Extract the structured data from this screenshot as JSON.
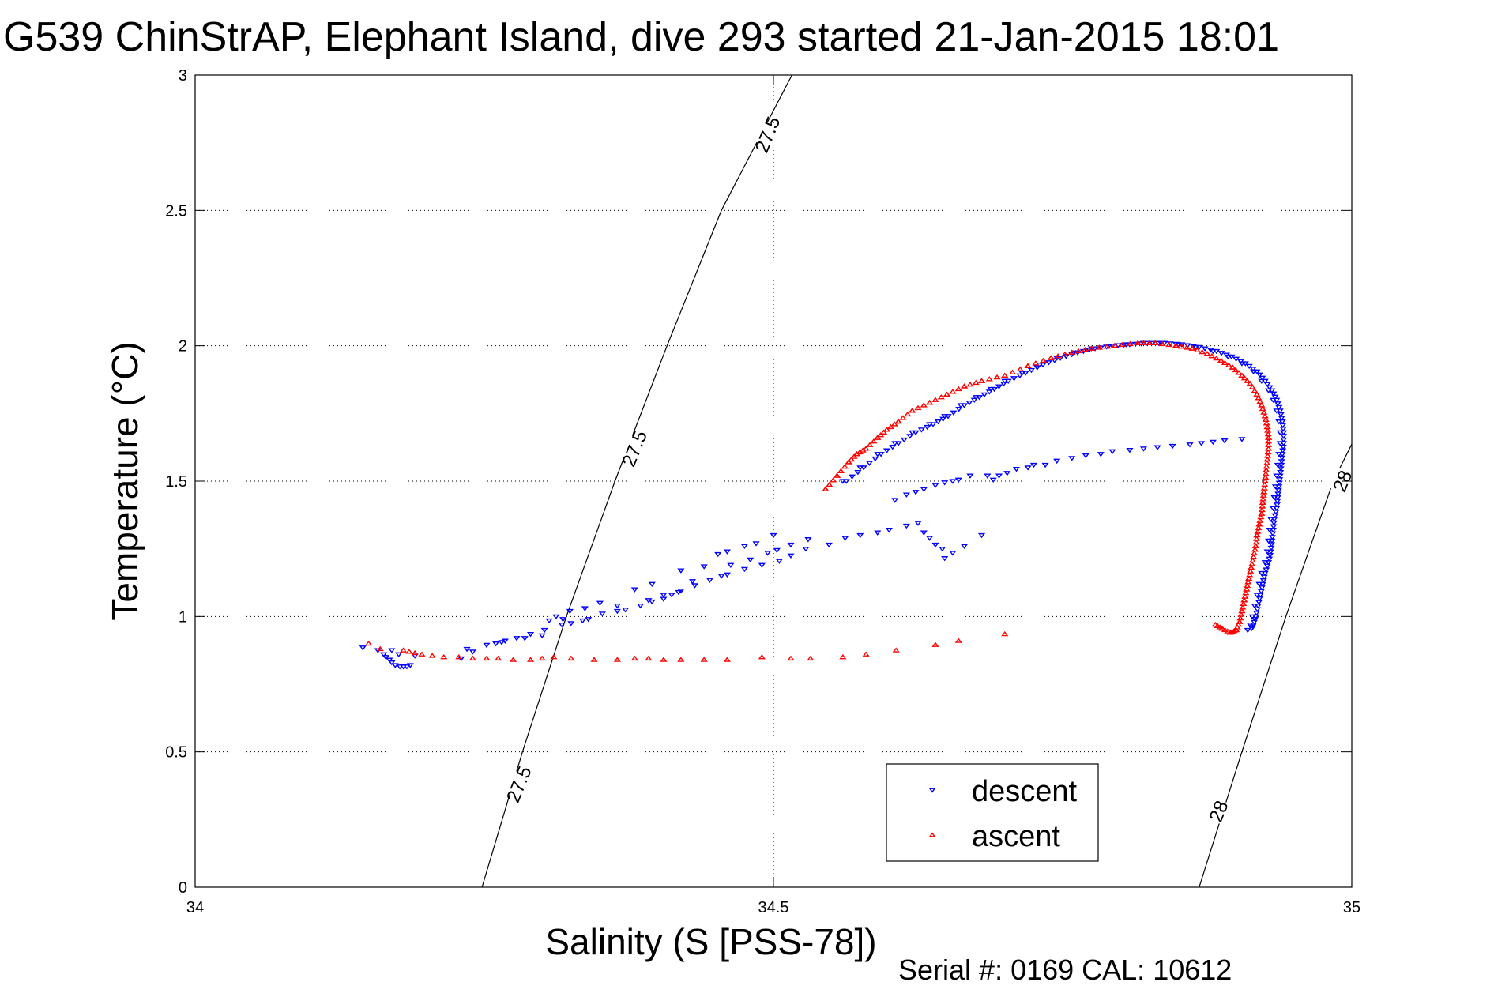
{
  "chart_data": {
    "type": "scatter",
    "title": "G539 ChinStrAP, Elephant Island, dive 293 started 21-Jan-2015 18:01",
    "xlabel": "Salinity (S [PSS-78])",
    "ylabel": "Temperature (°C)",
    "xlim": [
      34,
      35
    ],
    "ylim": [
      0,
      3
    ],
    "x_ticks": [
      34,
      34.5,
      35
    ],
    "x_tick_labels": [
      "34",
      "34.5",
      "35"
    ],
    "y_ticks": [
      0,
      0.5,
      1,
      1.5,
      2,
      2.5,
      3
    ],
    "y_tick_labels": [
      "0",
      "0.5",
      "1",
      "1.5",
      "2",
      "2.5",
      "3"
    ],
    "grid": true,
    "legend": {
      "placement": "bottom-right",
      "entries": [
        {
          "label": "descent",
          "marker": "triangle-down",
          "color": "#0000ff"
        },
        {
          "label": "ascent",
          "marker": "triangle-up",
          "color": "#ff0000"
        }
      ]
    },
    "footer": "Serial #: 0169 CAL: 10612",
    "isopycnals": [
      {
        "label": "27.5",
        "points": [
          [
            34.248,
            0
          ],
          [
            34.283,
            0.5
          ],
          [
            34.321,
            1.0
          ],
          [
            34.363,
            1.5
          ],
          [
            34.408,
            2.0
          ],
          [
            34.455,
            2.5
          ],
          [
            34.516,
            3.0
          ]
        ],
        "label_positions": [
          [
            34.28,
            0.38
          ],
          [
            34.38,
            1.62
          ],
          [
            34.495,
            2.78
          ]
        ]
      },
      {
        "label": "28",
        "points": [
          [
            34.868,
            0
          ],
          [
            34.905,
            0.5
          ],
          [
            34.943,
            1.0
          ],
          [
            34.984,
            1.5
          ],
          [
            35.0,
            1.637
          ]
        ],
        "label_positions": [
          [
            34.885,
            0.28
          ],
          [
            34.992,
            1.5
          ]
        ]
      }
    ],
    "series": [
      {
        "name": "descent",
        "color": "#0000ff",
        "marker": "triangle-down",
        "points": [
          [
            34.145,
            0.885
          ],
          [
            34.158,
            0.875
          ],
          [
            34.163,
            0.86
          ],
          [
            34.165,
            0.85
          ],
          [
            34.168,
            0.84
          ],
          [
            34.17,
            0.83
          ],
          [
            34.173,
            0.82
          ],
          [
            34.177,
            0.815
          ],
          [
            34.18,
            0.815
          ],
          [
            34.183,
            0.815
          ],
          [
            34.186,
            0.82
          ],
          [
            34.176,
            0.86
          ],
          [
            34.17,
            0.875
          ],
          [
            34.19,
            0.855
          ],
          [
            34.23,
            0.845
          ],
          [
            34.24,
            0.87
          ],
          [
            34.252,
            0.895
          ],
          [
            34.26,
            0.9
          ],
          [
            34.268,
            0.91
          ],
          [
            34.278,
            0.92
          ],
          [
            34.29,
            0.935
          ],
          [
            34.302,
            0.95
          ],
          [
            34.317,
            0.97
          ],
          [
            34.325,
            0.975
          ],
          [
            34.335,
            0.985
          ],
          [
            34.34,
            0.99
          ],
          [
            34.352,
            1.01
          ],
          [
            34.365,
            1.02
          ],
          [
            34.372,
            1.025
          ],
          [
            34.385,
            1.04
          ],
          [
            34.395,
            1.055
          ],
          [
            34.405,
            1.065
          ],
          [
            34.412,
            1.08
          ],
          [
            34.42,
            1.095
          ],
          [
            34.432,
            1.115
          ],
          [
            34.445,
            1.135
          ],
          [
            34.455,
            1.15
          ],
          [
            34.46,
            1.155
          ],
          [
            34.475,
            1.175
          ],
          [
            34.49,
            1.19
          ],
          [
            34.505,
            1.205
          ],
          [
            34.515,
            1.225
          ],
          [
            34.528,
            1.25
          ],
          [
            34.548,
            1.265
          ],
          [
            34.562,
            1.29
          ],
          [
            34.575,
            1.3
          ],
          [
            34.59,
            1.31
          ],
          [
            34.6,
            1.32
          ],
          [
            34.615,
            1.335
          ],
          [
            34.625,
            1.345
          ],
          [
            34.63,
            1.31
          ],
          [
            34.635,
            1.29
          ],
          [
            34.64,
            1.265
          ],
          [
            34.646,
            1.25
          ],
          [
            34.648,
            1.215
          ],
          [
            34.655,
            1.235
          ],
          [
            34.665,
            1.26
          ],
          [
            34.68,
            1.3
          ],
          [
            34.337,
            1.03
          ],
          [
            34.35,
            1.05
          ],
          [
            34.38,
            1.1
          ],
          [
            34.395,
            1.12
          ],
          [
            34.42,
            1.17
          ],
          [
            34.44,
            1.185
          ],
          [
            34.452,
            1.23
          ],
          [
            34.46,
            1.24
          ],
          [
            34.475,
            1.26
          ],
          [
            34.485,
            1.27
          ],
          [
            34.5,
            1.3
          ],
          [
            34.365,
            1.04
          ],
          [
            34.392,
            1.06
          ],
          [
            34.405,
            1.08
          ],
          [
            34.418,
            1.09
          ],
          [
            34.43,
            1.13
          ],
          [
            34.463,
            1.19
          ],
          [
            34.48,
            1.21
          ],
          [
            34.495,
            1.235
          ],
          [
            34.503,
            1.245
          ],
          [
            34.515,
            1.265
          ],
          [
            34.53,
            1.285
          ],
          [
            34.312,
            1.0
          ],
          [
            34.324,
            1.02
          ],
          [
            34.306,
            0.985
          ],
          [
            34.318,
            0.99
          ],
          [
            34.285,
            0.92
          ],
          [
            34.3,
            0.93
          ],
          [
            34.265,
            0.905
          ],
          [
            34.235,
            0.88
          ],
          [
            34.605,
            1.43
          ],
          [
            34.615,
            1.45
          ],
          [
            34.623,
            1.46
          ],
          [
            34.63,
            1.47
          ],
          [
            34.64,
            1.485
          ],
          [
            34.648,
            1.495
          ],
          [
            34.655,
            1.5
          ],
          [
            34.66,
            1.505
          ],
          [
            34.67,
            1.52
          ],
          [
            34.685,
            1.52
          ],
          [
            34.69,
            1.505
          ],
          [
            34.695,
            1.52
          ],
          [
            34.702,
            1.53
          ],
          [
            34.71,
            1.545
          ],
          [
            34.72,
            1.55
          ],
          [
            34.725,
            1.56
          ],
          [
            34.735,
            1.56
          ],
          [
            34.745,
            1.575
          ],
          [
            34.758,
            1.585
          ],
          [
            34.77,
            1.595
          ],
          [
            34.783,
            1.6
          ],
          [
            34.793,
            1.61
          ],
          [
            34.808,
            1.615
          ],
          [
            34.82,
            1.62
          ],
          [
            34.832,
            1.625
          ],
          [
            34.845,
            1.63
          ],
          [
            34.86,
            1.635
          ],
          [
            34.87,
            1.64
          ],
          [
            34.88,
            1.645
          ],
          [
            34.89,
            1.65
          ],
          [
            34.905,
            1.655
          ]
        ]
      },
      {
        "name": "ascent",
        "color": "#ff0000",
        "marker": "triangle-up",
        "points": [
          [
            34.15,
            0.9
          ],
          [
            34.16,
            0.88
          ],
          [
            34.18,
            0.875
          ],
          [
            34.185,
            0.87
          ],
          [
            34.19,
            0.865
          ],
          [
            34.196,
            0.86
          ],
          [
            34.205,
            0.855
          ],
          [
            34.215,
            0.85
          ],
          [
            34.228,
            0.85
          ],
          [
            34.24,
            0.845
          ],
          [
            34.252,
            0.845
          ],
          [
            34.262,
            0.845
          ],
          [
            34.275,
            0.84
          ],
          [
            34.29,
            0.84
          ],
          [
            34.3,
            0.845
          ],
          [
            34.31,
            0.85
          ],
          [
            34.325,
            0.845
          ],
          [
            34.345,
            0.84
          ],
          [
            34.365,
            0.84
          ],
          [
            34.38,
            0.845
          ],
          [
            34.392,
            0.845
          ],
          [
            34.405,
            0.84
          ],
          [
            34.42,
            0.84
          ],
          [
            34.44,
            0.84
          ],
          [
            34.46,
            0.84
          ],
          [
            34.49,
            0.85
          ],
          [
            34.515,
            0.845
          ],
          [
            34.532,
            0.845
          ],
          [
            34.56,
            0.85
          ],
          [
            34.58,
            0.86
          ],
          [
            34.606,
            0.875
          ],
          [
            34.64,
            0.895
          ],
          [
            34.66,
            0.91
          ],
          [
            34.7,
            0.935
          ]
        ]
      }
    ],
    "arc_descent": [
      [
        34.56,
        1.5
      ],
      [
        34.575,
        1.55
      ],
      [
        34.59,
        1.6
      ],
      [
        34.605,
        1.64
      ],
      [
        34.62,
        1.68
      ],
      [
        34.635,
        1.71
      ],
      [
        34.648,
        1.74
      ],
      [
        34.662,
        1.78
      ],
      [
        34.675,
        1.81
      ],
      [
        34.688,
        1.84
      ],
      [
        34.7,
        1.87
      ],
      [
        34.715,
        1.9
      ],
      [
        34.73,
        1.93
      ],
      [
        34.745,
        1.955
      ],
      [
        34.76,
        1.975
      ],
      [
        34.775,
        1.99
      ],
      [
        34.79,
        2.0
      ],
      [
        34.805,
        2.005
      ],
      [
        34.82,
        2.01
      ],
      [
        34.835,
        2.01
      ],
      [
        34.85,
        2.005
      ],
      [
        34.865,
        1.995
      ],
      [
        34.88,
        1.98
      ],
      [
        34.893,
        1.96
      ],
      [
        34.905,
        1.935
      ],
      [
        34.915,
        1.905
      ],
      [
        34.922,
        1.87
      ],
      [
        34.928,
        1.835
      ],
      [
        34.932,
        1.8
      ],
      [
        34.935,
        1.76
      ],
      [
        34.937,
        1.72
      ],
      [
        34.938,
        1.68
      ],
      [
        34.938,
        1.64
      ],
      [
        34.937,
        1.6
      ],
      [
        34.936,
        1.56
      ],
      [
        34.935,
        1.52
      ],
      [
        34.934,
        1.48
      ],
      [
        34.933,
        1.44
      ],
      [
        34.932,
        1.4
      ],
      [
        34.93,
        1.36
      ],
      [
        34.929,
        1.32
      ],
      [
        34.928,
        1.28
      ],
      [
        34.927,
        1.24
      ],
      [
        34.925,
        1.2
      ],
      [
        34.922,
        1.16
      ],
      [
        34.92,
        1.12
      ],
      [
        34.918,
        1.08
      ],
      [
        34.916,
        1.04
      ],
      [
        34.914,
        1.0
      ],
      [
        34.912,
        0.97
      ],
      [
        34.91,
        0.95
      ]
    ],
    "arc_ascent": [
      [
        34.545,
        1.47
      ],
      [
        34.555,
        1.52
      ],
      [
        34.565,
        1.57
      ],
      [
        34.572,
        1.6
      ],
      [
        34.58,
        1.62
      ],
      [
        34.59,
        1.66
      ],
      [
        34.598,
        1.69
      ],
      [
        34.608,
        1.72
      ],
      [
        34.62,
        1.76
      ],
      [
        34.635,
        1.79
      ],
      [
        34.65,
        1.82
      ],
      [
        34.665,
        1.85
      ],
      [
        34.68,
        1.87
      ],
      [
        34.7,
        1.89
      ],
      [
        34.72,
        1.925
      ],
      [
        34.74,
        1.955
      ],
      [
        34.758,
        1.975
      ],
      [
        34.775,
        1.99
      ],
      [
        34.795,
        2.0
      ],
      [
        34.815,
        2.01
      ],
      [
        34.83,
        2.01
      ],
      [
        34.848,
        2.0
      ],
      [
        34.862,
        1.99
      ],
      [
        34.875,
        1.97
      ],
      [
        34.887,
        1.945
      ],
      [
        34.897,
        1.92
      ],
      [
        34.905,
        1.89
      ],
      [
        34.912,
        1.86
      ],
      [
        34.918,
        1.82
      ],
      [
        34.922,
        1.78
      ],
      [
        34.925,
        1.74
      ],
      [
        34.927,
        1.7
      ],
      [
        34.928,
        1.66
      ],
      [
        34.928,
        1.62
      ],
      [
        34.927,
        1.58
      ],
      [
        34.926,
        1.54
      ],
      [
        34.925,
        1.5
      ],
      [
        34.924,
        1.46
      ],
      [
        34.923,
        1.42
      ],
      [
        34.922,
        1.38
      ],
      [
        34.92,
        1.34
      ],
      [
        34.918,
        1.3
      ],
      [
        34.917,
        1.26
      ],
      [
        34.915,
        1.22
      ],
      [
        34.913,
        1.18
      ],
      [
        34.911,
        1.14
      ],
      [
        34.909,
        1.1
      ],
      [
        34.907,
        1.06
      ],
      [
        34.905,
        1.02
      ],
      [
        34.903,
        0.98
      ],
      [
        34.9,
        0.95
      ],
      [
        34.895,
        0.94
      ],
      [
        34.888,
        0.955
      ],
      [
        34.882,
        0.97
      ]
    ]
  }
}
